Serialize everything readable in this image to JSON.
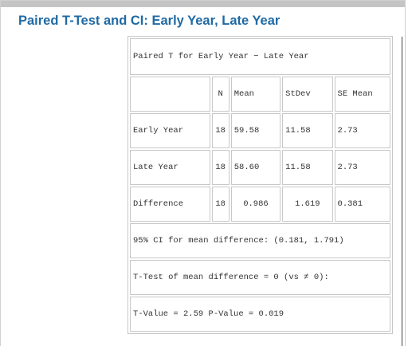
{
  "heading": "Paired T-Test and CI: Early Year, Late Year",
  "table": {
    "title": "Paired T for Early Year − Late Year",
    "columns": [
      "",
      "N",
      "Mean",
      "StDev",
      "SE Mean"
    ],
    "rows": [
      {
        "label": "Early Year",
        "n": "18",
        "mean": "59.58",
        "stdev": "11.58",
        "se_mean": "2.73"
      },
      {
        "label": "Late Year",
        "n": "18",
        "mean": "58.60",
        "stdev": "11.58",
        "se_mean": "2.73"
      },
      {
        "label": "Difference",
        "n": "18",
        "mean": "0.986",
        "stdev": "1.619",
        "se_mean": "0.381"
      }
    ],
    "ci_line": "95% CI for mean difference: (0.181, 1.791)",
    "ttest_line": "T-Test of mean difference = 0 (vs ≠ 0):",
    "result_line": "T-Value = 2.59 P-Value = 0.019"
  }
}
